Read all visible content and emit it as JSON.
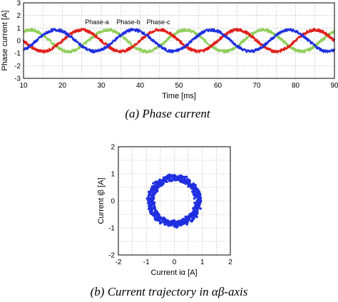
{
  "chart_data": [
    {
      "type": "line",
      "caption": "(a)  Phase current",
      "xlabel": "Time [ms]",
      "ylabel": "Phase current [A]",
      "xlim": [
        10,
        90
      ],
      "ylim": [
        -3,
        3
      ],
      "xticks": [
        "10",
        "20",
        "30",
        "40",
        "50",
        "60",
        "70",
        "80",
        "90"
      ],
      "yticks": [
        "3",
        "2",
        "1",
        "0",
        "-1",
        "-2",
        "-3"
      ],
      "grid": true,
      "frequency_hz": 50,
      "series": [
        {
          "name": "Phase-a",
          "color": "#e0201a",
          "amplitude": 0.85,
          "phase_deg": 0
        },
        {
          "name": "Phase-b",
          "color": "#8fcf5a",
          "amplitude": 0.85,
          "phase_deg": -120
        },
        {
          "name": "Phase-c",
          "color": "#1f2fe0",
          "amplitude": 0.85,
          "phase_deg": 120
        }
      ]
    },
    {
      "type": "scatter",
      "caption": "(b)  Current trajectory in αβ-axis",
      "xlabel": "Current iα [A]",
      "ylabel": "Current iβ [A]",
      "xlim": [
        -2,
        2
      ],
      "ylim": [
        -2,
        2
      ],
      "xticks": [
        "-2",
        "-1",
        "0",
        "1",
        "2"
      ],
      "yticks": [
        "2",
        "1",
        "0",
        "-1",
        "-2"
      ],
      "grid": true,
      "color": "#1f2fe0",
      "radius": 0.85
    }
  ]
}
